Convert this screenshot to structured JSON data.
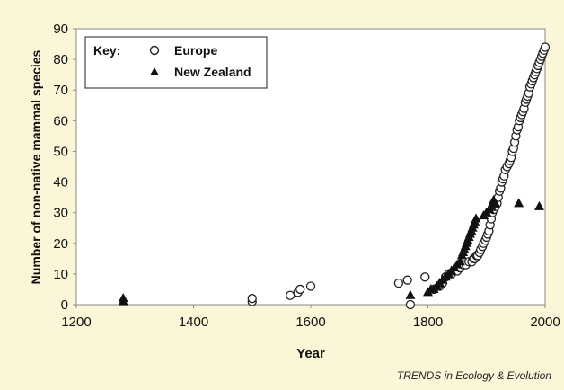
{
  "chart_data": {
    "type": "scatter",
    "xlabel": "Year",
    "ylabel": "Number of non-native mammal species",
    "xlim": [
      1200,
      2000
    ],
    "ylim": [
      0,
      90
    ],
    "xticks": [
      "1200",
      "1400",
      "1600",
      "1800",
      "2000"
    ],
    "yticks": [
      "0",
      "10",
      "20",
      "30",
      "40",
      "50",
      "60",
      "70",
      "80",
      "90"
    ],
    "grid": false,
    "legend": {
      "title": "Key:",
      "placement": "top-left"
    },
    "series": [
      {
        "name": "Europe",
        "marker": "open-circle",
        "points": [
          [
            1500,
            1
          ],
          [
            1500,
            2
          ],
          [
            1565,
            3
          ],
          [
            1578,
            4
          ],
          [
            1582,
            5
          ],
          [
            1600,
            6
          ],
          [
            1750,
            7
          ],
          [
            1765,
            8
          ],
          [
            1770,
            0
          ],
          [
            1795,
            9
          ],
          [
            1810,
            5
          ],
          [
            1820,
            6
          ],
          [
            1825,
            7
          ],
          [
            1830,
            9
          ],
          [
            1835,
            10
          ],
          [
            1840,
            10
          ],
          [
            1845,
            11
          ],
          [
            1850,
            11
          ],
          [
            1855,
            12
          ],
          [
            1860,
            13
          ],
          [
            1865,
            13
          ],
          [
            1870,
            14
          ],
          [
            1875,
            14
          ],
          [
            1878,
            15
          ],
          [
            1880,
            15
          ],
          [
            1883,
            16
          ],
          [
            1885,
            16
          ],
          [
            1888,
            17
          ],
          [
            1890,
            18
          ],
          [
            1893,
            19
          ],
          [
            1895,
            20
          ],
          [
            1898,
            21
          ],
          [
            1900,
            22
          ],
          [
            1902,
            23
          ],
          [
            1904,
            24
          ],
          [
            1906,
            26
          ],
          [
            1908,
            28
          ],
          [
            1910,
            30
          ],
          [
            1912,
            31
          ],
          [
            1915,
            32
          ],
          [
            1918,
            33
          ],
          [
            1920,
            35
          ],
          [
            1922,
            37
          ],
          [
            1924,
            38
          ],
          [
            1926,
            40
          ],
          [
            1928,
            41
          ],
          [
            1930,
            42
          ],
          [
            1932,
            44
          ],
          [
            1935,
            45
          ],
          [
            1938,
            46
          ],
          [
            1940,
            47
          ],
          [
            1942,
            48
          ],
          [
            1944,
            50
          ],
          [
            1946,
            51
          ],
          [
            1948,
            53
          ],
          [
            1950,
            55
          ],
          [
            1952,
            57
          ],
          [
            1954,
            58
          ],
          [
            1956,
            60
          ],
          [
            1958,
            61
          ],
          [
            1960,
            62
          ],
          [
            1962,
            63
          ],
          [
            1964,
            64
          ],
          [
            1966,
            66
          ],
          [
            1968,
            67
          ],
          [
            1970,
            68
          ],
          [
            1972,
            69
          ],
          [
            1974,
            71
          ],
          [
            1976,
            72
          ],
          [
            1978,
            73
          ],
          [
            1980,
            74
          ],
          [
            1982,
            75
          ],
          [
            1984,
            76
          ],
          [
            1986,
            77
          ],
          [
            1988,
            78
          ],
          [
            1990,
            79
          ],
          [
            1992,
            80
          ],
          [
            1994,
            81
          ],
          [
            1996,
            82
          ],
          [
            1998,
            83
          ],
          [
            2000,
            84
          ]
        ]
      },
      {
        "name": "New Zealand",
        "marker": "filled-triangle",
        "points": [
          [
            1280,
            1
          ],
          [
            1280,
            2
          ],
          [
            1770,
            3
          ],
          [
            1800,
            4
          ],
          [
            1805,
            5
          ],
          [
            1810,
            5
          ],
          [
            1815,
            6
          ],
          [
            1820,
            7
          ],
          [
            1825,
            8
          ],
          [
            1830,
            9
          ],
          [
            1835,
            10
          ],
          [
            1840,
            11
          ],
          [
            1845,
            12
          ],
          [
            1850,
            13
          ],
          [
            1855,
            14
          ],
          [
            1858,
            16
          ],
          [
            1860,
            17
          ],
          [
            1862,
            18
          ],
          [
            1864,
            19
          ],
          [
            1866,
            20
          ],
          [
            1868,
            21
          ],
          [
            1870,
            22
          ],
          [
            1872,
            23
          ],
          [
            1874,
            24
          ],
          [
            1876,
            25
          ],
          [
            1878,
            26
          ],
          [
            1880,
            27
          ],
          [
            1882,
            28
          ],
          [
            1895,
            29
          ],
          [
            1900,
            30
          ],
          [
            1905,
            31
          ],
          [
            1908,
            32
          ],
          [
            1910,
            33
          ],
          [
            1912,
            34
          ],
          [
            1915,
            33
          ],
          [
            1955,
            33
          ],
          [
            1990,
            32
          ]
        ]
      }
    ]
  },
  "source_label": "TRENDS in Ecology & Evolution"
}
